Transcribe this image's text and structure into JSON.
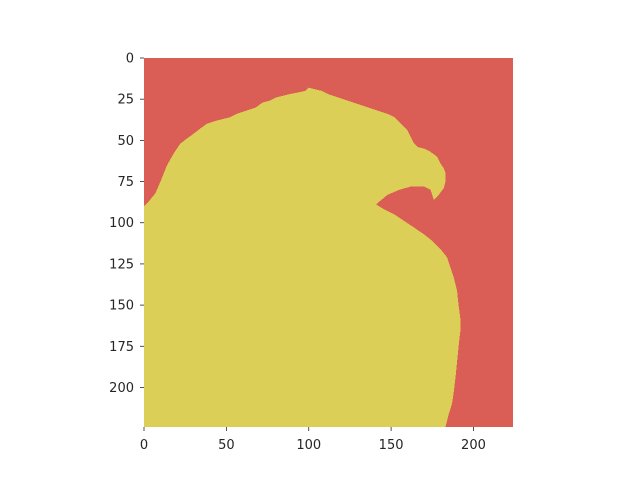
{
  "chart_data": {
    "type": "heatmap",
    "title": "",
    "xlabel": "",
    "ylabel": "",
    "image_size": [
      224,
      224
    ],
    "xlim": [
      0,
      224
    ],
    "ylim": [
      224,
      0
    ],
    "y_inverted": true,
    "grid": false,
    "xticks": [
      0,
      50,
      100,
      150,
      200
    ],
    "yticks": [
      0,
      25,
      50,
      75,
      100,
      125,
      150,
      175,
      200
    ],
    "xtick_labels": [
      "0",
      "50",
      "100",
      "150",
      "200"
    ],
    "ytick_labels": [
      "0",
      "25",
      "50",
      "75",
      "100",
      "125",
      "150",
      "175",
      "200"
    ],
    "classes": [
      {
        "id": 0,
        "role": "background",
        "color": "#db5e56"
      },
      {
        "id": 1,
        "role": "foreground",
        "color": "#dbcf57"
      }
    ],
    "foreground_outline": [
      [
        0,
        224
      ],
      [
        0,
        90
      ],
      [
        3,
        87
      ],
      [
        7,
        82
      ],
      [
        10,
        75
      ],
      [
        12,
        70
      ],
      [
        14,
        65
      ],
      [
        18,
        58
      ],
      [
        22,
        52
      ],
      [
        26,
        49
      ],
      [
        30,
        46
      ],
      [
        34,
        43
      ],
      [
        38,
        40
      ],
      [
        44,
        38
      ],
      [
        52,
        36
      ],
      [
        56,
        34
      ],
      [
        62,
        32
      ],
      [
        68,
        30
      ],
      [
        72,
        27
      ],
      [
        76,
        26
      ],
      [
        80,
        24
      ],
      [
        84,
        23
      ],
      [
        88,
        22
      ],
      [
        93,
        21
      ],
      [
        98,
        20
      ],
      [
        100,
        18
      ],
      [
        104,
        19
      ],
      [
        108,
        20
      ],
      [
        112,
        22
      ],
      [
        118,
        24
      ],
      [
        124,
        26
      ],
      [
        130,
        28
      ],
      [
        136,
        30
      ],
      [
        142,
        32
      ],
      [
        148,
        34
      ],
      [
        152,
        36
      ],
      [
        156,
        40
      ],
      [
        160,
        44
      ],
      [
        162,
        48
      ],
      [
        164,
        52
      ],
      [
        166,
        54
      ],
      [
        170,
        55
      ],
      [
        174,
        57
      ],
      [
        178,
        60
      ],
      [
        180,
        64
      ],
      [
        182,
        67
      ],
      [
        183,
        70
      ],
      [
        183,
        75
      ],
      [
        182,
        79
      ],
      [
        179,
        83
      ],
      [
        176,
        86
      ],
      [
        174,
        80
      ],
      [
        170,
        78
      ],
      [
        162,
        78
      ],
      [
        155,
        80
      ],
      [
        148,
        83
      ],
      [
        143,
        87
      ],
      [
        141,
        89
      ],
      [
        146,
        92
      ],
      [
        152,
        95
      ],
      [
        158,
        99
      ],
      [
        164,
        103
      ],
      [
        170,
        107
      ],
      [
        175,
        111
      ],
      [
        180,
        116
      ],
      [
        184,
        121
      ],
      [
        186,
        127
      ],
      [
        188,
        133
      ],
      [
        190,
        141
      ],
      [
        191,
        150
      ],
      [
        192,
        158
      ],
      [
        192,
        166
      ],
      [
        191,
        175
      ],
      [
        190,
        185
      ],
      [
        189,
        195
      ],
      [
        188,
        203
      ],
      [
        187,
        210
      ],
      [
        185,
        216
      ],
      [
        184,
        220
      ],
      [
        183,
        224
      ]
    ]
  }
}
